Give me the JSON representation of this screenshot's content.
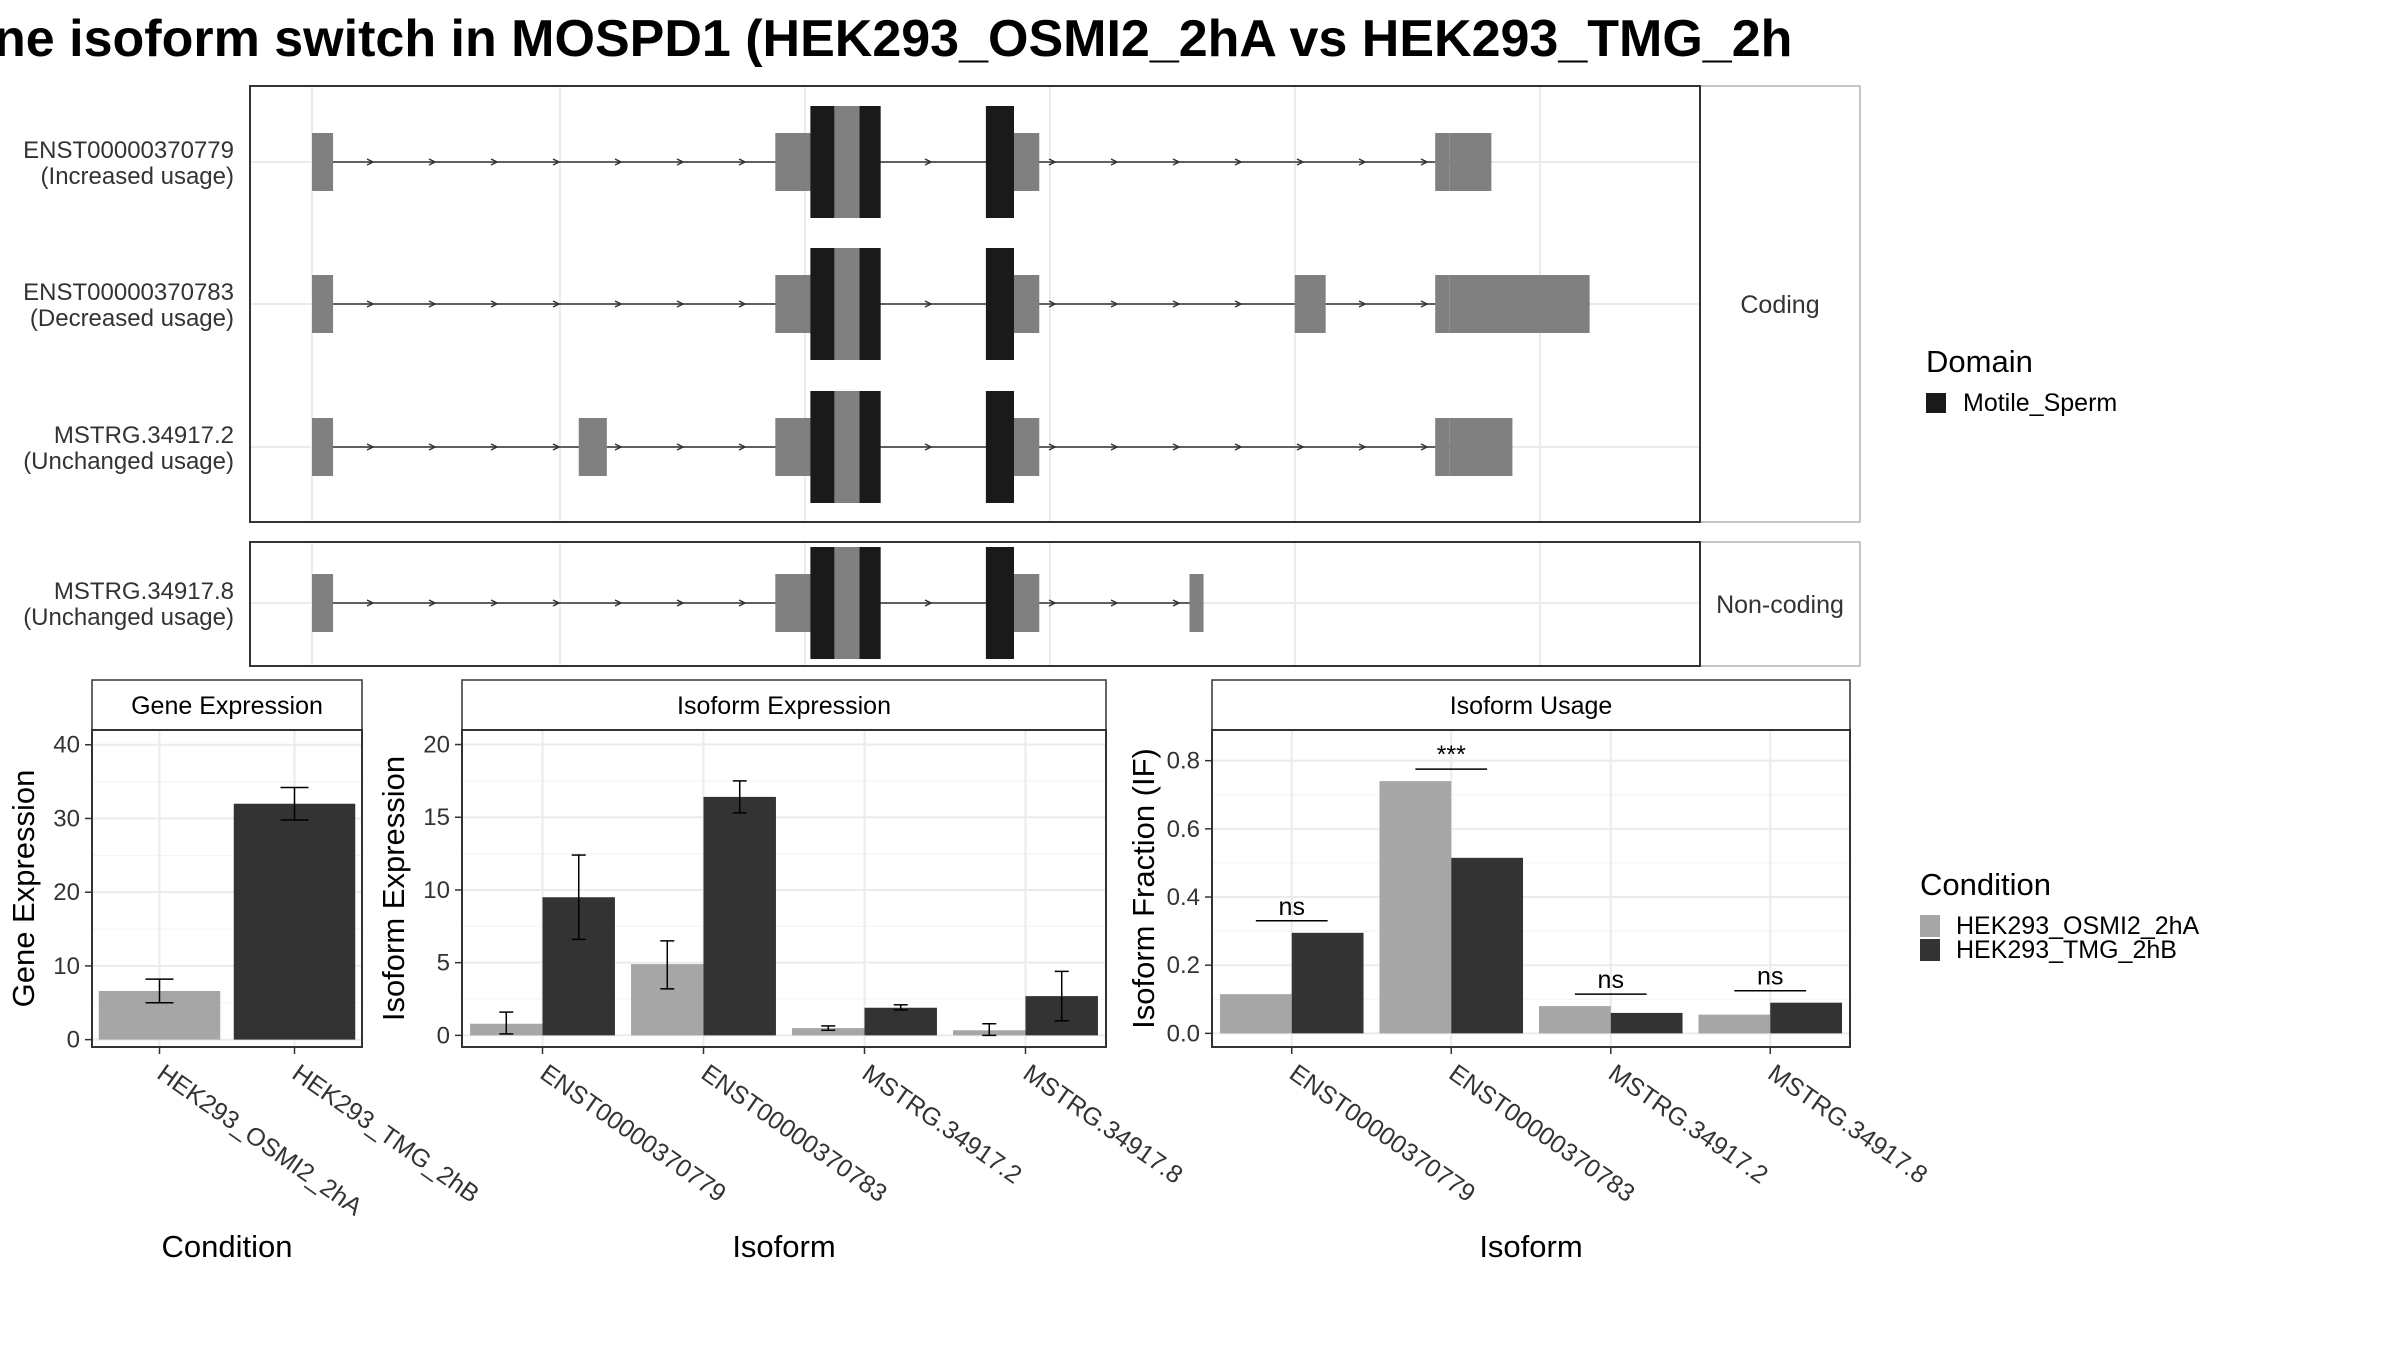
{
  "title": "ne isoform switch in MOSPD1 (HEK293_OSMI2_2hA vs HEK293_TMG_2h",
  "colors": {
    "exon": "#808080",
    "domain": "#1a1a1a",
    "cond_a": "#a6a6a6",
    "cond_b": "#333333",
    "grid": "#ebebeb",
    "strip": "#ffffff"
  },
  "chart_data": [
    {
      "type": "gene-structure",
      "panels": [
        {
          "label": "Coding",
          "isoforms": [
            {
              "id": "ENST00000370779",
              "usage": "(Increased usage)",
              "exons": [
                [
                  0.0,
                  0.015,
                  "utr"
                ],
                [
                  0.33,
                  0.045,
                  "utr"
                ],
                [
                  0.355,
                  0.045,
                  "cds"
                ],
                [
                  0.39,
                  0.015,
                  "cds"
                ],
                [
                  0.48,
                  0.02,
                  "cds"
                ],
                [
                  0.5,
                  0.018,
                  "utr"
                ],
                [
                  0.8,
                  0.01,
                  "utr"
                ],
                [
                  0.81,
                  0.03,
                  "utr"
                ]
              ],
              "domains": [
                [
                  0.355,
                  0.372
                ],
                [
                  0.39,
                  0.405
                ],
                [
                  0.48,
                  0.5
                ]
              ]
            },
            {
              "id": "ENST00000370783",
              "usage": "(Decreased usage)",
              "exons": [
                [
                  0.0,
                  0.015,
                  "utr"
                ],
                [
                  0.33,
                  0.045,
                  "utr"
                ],
                [
                  0.355,
                  0.045,
                  "cds"
                ],
                [
                  0.39,
                  0.015,
                  "cds"
                ],
                [
                  0.48,
                  0.02,
                  "cds"
                ],
                [
                  0.5,
                  0.018,
                  "utr"
                ],
                [
                  0.7,
                  0.022,
                  "utr"
                ],
                [
                  0.8,
                  0.01,
                  "utr"
                ],
                [
                  0.81,
                  0.1,
                  "utr"
                ]
              ],
              "domains": [
                [
                  0.355,
                  0.372
                ],
                [
                  0.39,
                  0.405
                ],
                [
                  0.48,
                  0.5
                ]
              ]
            },
            {
              "id": "MSTRG.34917.2",
              "usage": "(Unchanged usage)",
              "exons": [
                [
                  0.0,
                  0.015,
                  "utr"
                ],
                [
                  0.19,
                  0.02,
                  "utr"
                ],
                [
                  0.33,
                  0.045,
                  "utr"
                ],
                [
                  0.355,
                  0.045,
                  "cds"
                ],
                [
                  0.39,
                  0.015,
                  "cds"
                ],
                [
                  0.48,
                  0.02,
                  "cds"
                ],
                [
                  0.5,
                  0.018,
                  "utr"
                ],
                [
                  0.8,
                  0.01,
                  "utr"
                ],
                [
                  0.81,
                  0.045,
                  "utr"
                ]
              ],
              "domains": [
                [
                  0.355,
                  0.372
                ],
                [
                  0.39,
                  0.405
                ],
                [
                  0.48,
                  0.5
                ]
              ]
            }
          ]
        },
        {
          "label": "Non-coding",
          "isoforms": [
            {
              "id": "MSTRG.34917.8",
              "usage": "(Unchanged usage)",
              "exons": [
                [
                  0.0,
                  0.015,
                  "utr"
                ],
                [
                  0.33,
                  0.045,
                  "utr"
                ],
                [
                  0.355,
                  0.045,
                  "cds"
                ],
                [
                  0.39,
                  0.015,
                  "cds"
                ],
                [
                  0.48,
                  0.02,
                  "cds"
                ],
                [
                  0.5,
                  0.018,
                  "utr"
                ],
                [
                  0.625,
                  0.01,
                  "utr"
                ]
              ],
              "domains": [
                [
                  0.355,
                  0.372
                ],
                [
                  0.39,
                  0.405
                ],
                [
                  0.48,
                  0.5
                ]
              ]
            }
          ]
        }
      ],
      "legend": {
        "title": "Domain",
        "items": [
          "Motile_Sperm"
        ]
      }
    },
    {
      "type": "bar",
      "strip": "Gene Expression",
      "ylabel": "Gene Expression",
      "xlabel": "Condition",
      "ylim": [
        -1,
        42
      ],
      "yticks": [
        0,
        10,
        20,
        30,
        40
      ],
      "categories": [
        "HEK293_OSMI2_2hA",
        "HEK293_TMG_2hB"
      ],
      "values": [
        6.6,
        32.0
      ],
      "errors": [
        [
          5.0,
          8.2
        ],
        [
          29.8,
          34.2
        ]
      ]
    },
    {
      "type": "bar",
      "strip": "Isoform Expression",
      "ylabel": "Isoform Expression",
      "xlabel": "Isoform",
      "ylim": [
        -0.8,
        21
      ],
      "yticks": [
        0,
        5,
        10,
        15,
        20
      ],
      "categories": [
        "ENST00000370779",
        "ENST00000370783",
        "MSTRG.34917.2",
        "MSTRG.34917.8"
      ],
      "series": [
        {
          "name": "HEK293_OSMI2_2hA",
          "values": [
            0.8,
            4.9,
            0.5,
            0.35
          ],
          "errors": [
            [
              0.1,
              1.6
            ],
            [
              3.2,
              6.5
            ],
            [
              0.35,
              0.65
            ],
            [
              0.0,
              0.8
            ]
          ]
        },
        {
          "name": "HEK293_TMG_2hB",
          "values": [
            9.5,
            16.4,
            1.9,
            2.7
          ],
          "errors": [
            [
              6.6,
              12.4
            ],
            [
              15.3,
              17.5
            ],
            [
              1.75,
              2.1
            ],
            [
              1.0,
              4.4
            ]
          ]
        }
      ]
    },
    {
      "type": "bar",
      "strip": "Isoform Usage",
      "ylabel": "Isoform Fraction (IF)",
      "xlabel": "Isoform",
      "ylim": [
        -0.04,
        0.89
      ],
      "yticks": [
        "0.0",
        "0.2",
        "0.4",
        "0.6",
        "0.8"
      ],
      "categories": [
        "ENST00000370779",
        "ENST00000370783",
        "MSTRG.34917.2",
        "MSTRG.34917.8"
      ],
      "series": [
        {
          "name": "HEK293_OSMI2_2hA",
          "values": [
            0.115,
            0.74,
            0.08,
            0.055
          ]
        },
        {
          "name": "HEK293_TMG_2hB",
          "values": [
            0.295,
            0.515,
            0.06,
            0.09
          ]
        }
      ],
      "significance": [
        "ns",
        "***",
        "ns",
        "ns"
      ],
      "legend": {
        "title": "Condition",
        "items": [
          "HEK293_OSMI2_2hA",
          "HEK293_TMG_2hB"
        ]
      }
    }
  ]
}
